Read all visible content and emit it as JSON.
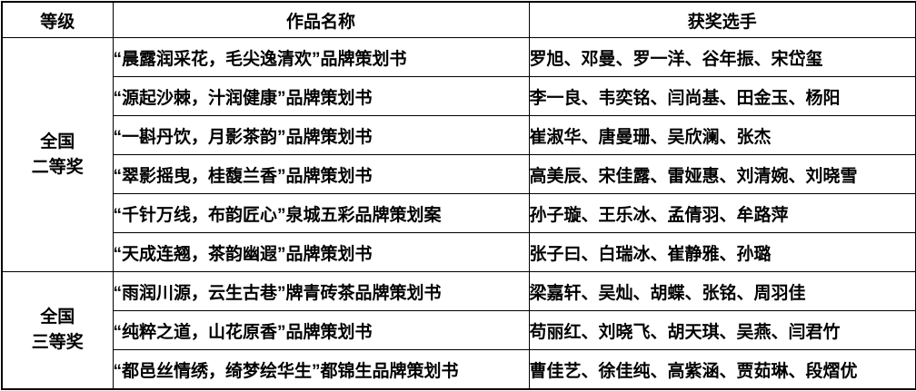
{
  "colors": {
    "grade_red": "#ee0000",
    "border": "#000000",
    "background": "#ffffff"
  },
  "table": {
    "headers": {
      "grade": "等级",
      "work": "作品名称",
      "player": "获奖选手"
    },
    "groups": [
      {
        "grade_line1": "全国",
        "grade_line2": "二等奖",
        "rows": [
          {
            "work": "“晨露润采花，毛尖逸清欢”品牌策划书",
            "players": "罗旭、邓曼、罗一洋、谷年振、宋岱玺"
          },
          {
            "work": "“源起沙棘，汁润健康”品牌策划书",
            "players": "李一良、韦奕铭、闫尚基、田金玉、杨阳"
          },
          {
            "work": "“一斟丹饮，月影茶韵”品牌策划书",
            "players": "崔淑华、唐曼珊、吴欣澜、张杰"
          },
          {
            "work": "“翠影摇曳，桂馥兰香”品牌策划书",
            "players": "高美辰、宋佳露、雷娅惠、刘清婉、刘晓雪"
          },
          {
            "work": "“千针万线，布韵匠心”泉城五彩品牌策划案",
            "players": "孙子璇、王乐冰、孟倩羽、牟路萍"
          },
          {
            "work": "“天成连翘，茶韵幽遐”品牌策划书",
            "players": "张子曰、白瑞冰、崔静雅、孙璐"
          }
        ]
      },
      {
        "grade_line1": "全国",
        "grade_line2": "三等奖",
        "rows": [
          {
            "work": "“雨润川源，云生古巷”牌青砖茶品牌策划书",
            "players": "梁嘉轩、吴灿、胡蝶、张铭、周羽佳"
          },
          {
            "work": "“纯粹之道，山花原香”品牌策划书",
            "players": "苟丽红、刘晓飞、胡天琪、吴燕、闫君竹"
          },
          {
            "work": "“都邑丝情绣，绮梦绘华生”都锦生品牌策划书",
            "players": "曹佳艺、徐佳纯、高紫涵、贾茹琳、段熠优"
          }
        ]
      }
    ]
  }
}
